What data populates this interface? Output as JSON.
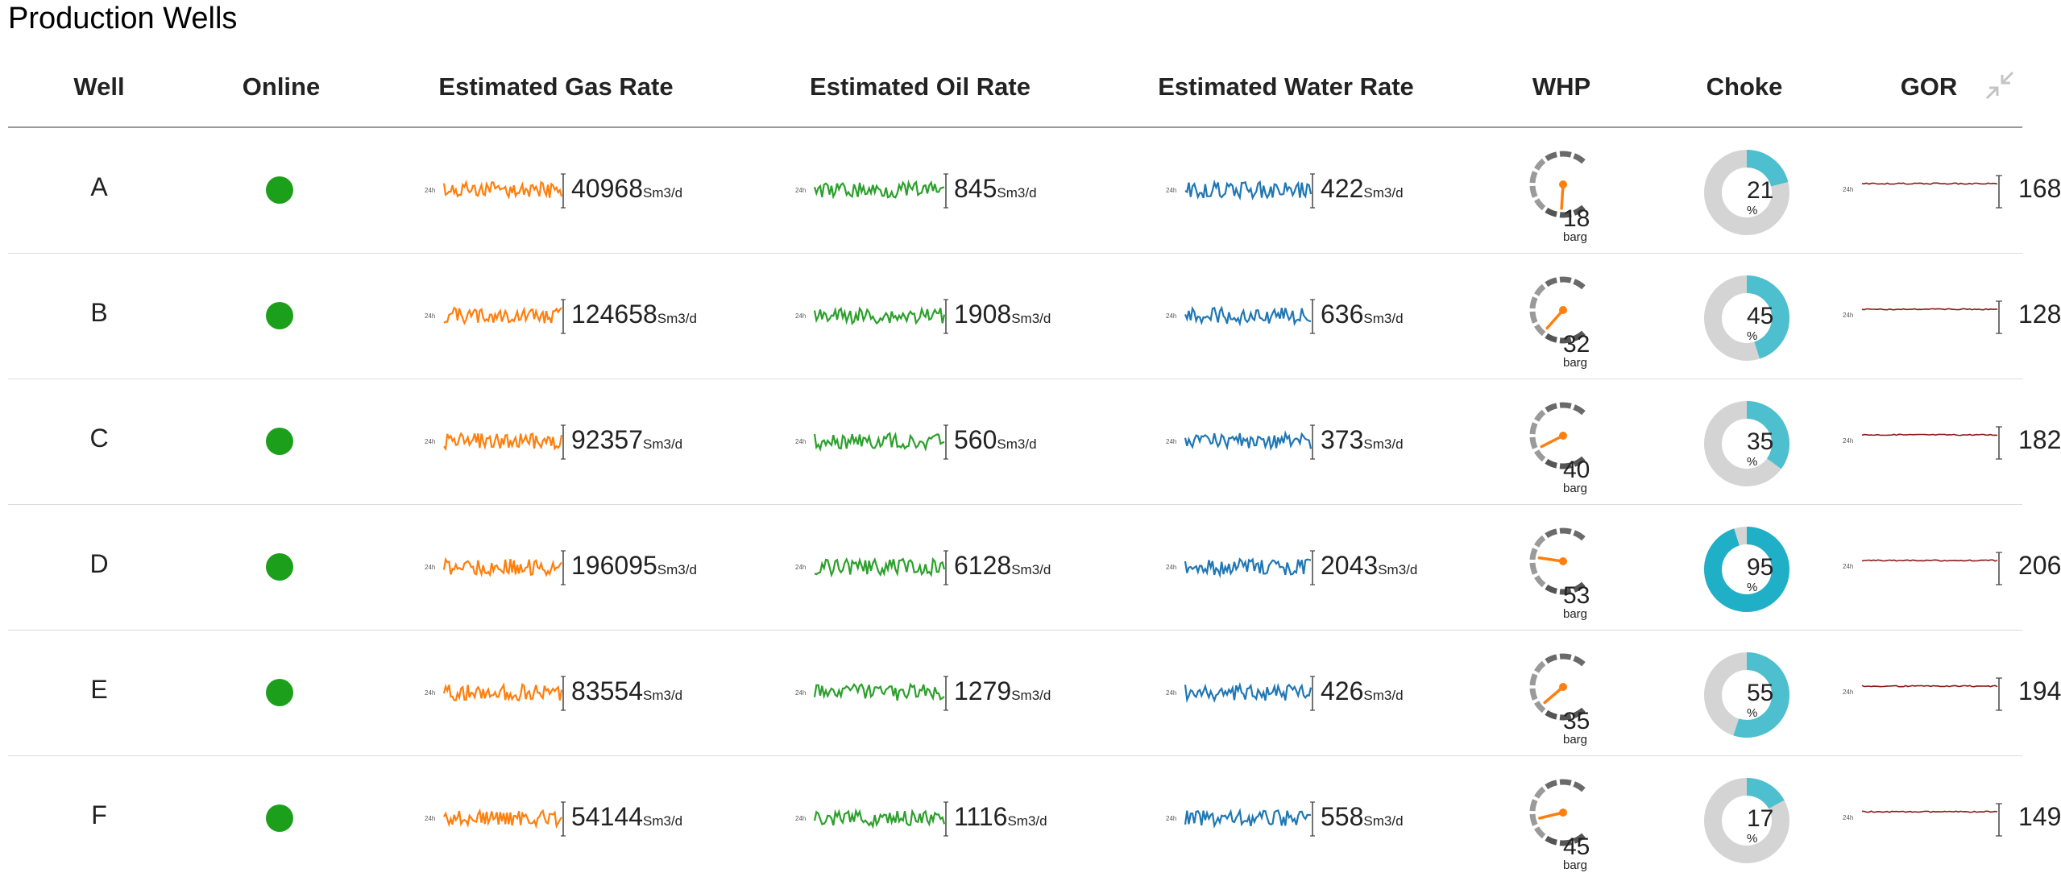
{
  "page": {
    "title": "Production Wells"
  },
  "columns": {
    "well": "Well",
    "online": "Online",
    "gas": "Estimated Gas Rate",
    "oil": "Estimated Oil Rate",
    "water": "Estimated Water Rate",
    "whp": "WHP",
    "choke": "Choke",
    "gor": "GOR"
  },
  "icons": {
    "collapse": "collapse-arrows-icon"
  },
  "colors": {
    "gas": "#ff7f0e",
    "oil": "#2ca02c",
    "water": "#1f77b4",
    "online": "#1ca01c",
    "choke": "#4dbfcf",
    "choke_high": "#1fb0c8",
    "gauge_needle": "#ff7f0e"
  },
  "labels": {
    "unit_rate": "Sm3/d",
    "unit_whp": "barg",
    "unit_choke": "%"
  },
  "wells": [
    {
      "name": "A",
      "online": true,
      "gas": "40968",
      "oil": "845",
      "water": "422",
      "whp": "18",
      "choke": "21",
      "gor": "168"
    },
    {
      "name": "B",
      "online": true,
      "gas": "124658",
      "oil": "1908",
      "water": "636",
      "whp": "32",
      "choke": "45",
      "gor": "128"
    },
    {
      "name": "C",
      "online": true,
      "gas": "92357",
      "oil": "560",
      "water": "373",
      "whp": "40",
      "choke": "35",
      "gor": "182"
    },
    {
      "name": "D",
      "online": true,
      "gas": "196095",
      "oil": "6128",
      "water": "2043",
      "whp": "53",
      "choke": "95",
      "gor": "206"
    },
    {
      "name": "E",
      "online": true,
      "gas": "83554",
      "oil": "1279",
      "water": "426",
      "whp": "35",
      "choke": "55",
      "gor": "194"
    },
    {
      "name": "F",
      "online": true,
      "gas": "54144",
      "oil": "1116",
      "water": "558",
      "whp": "45",
      "choke": "17",
      "gor": "149"
    }
  ]
}
